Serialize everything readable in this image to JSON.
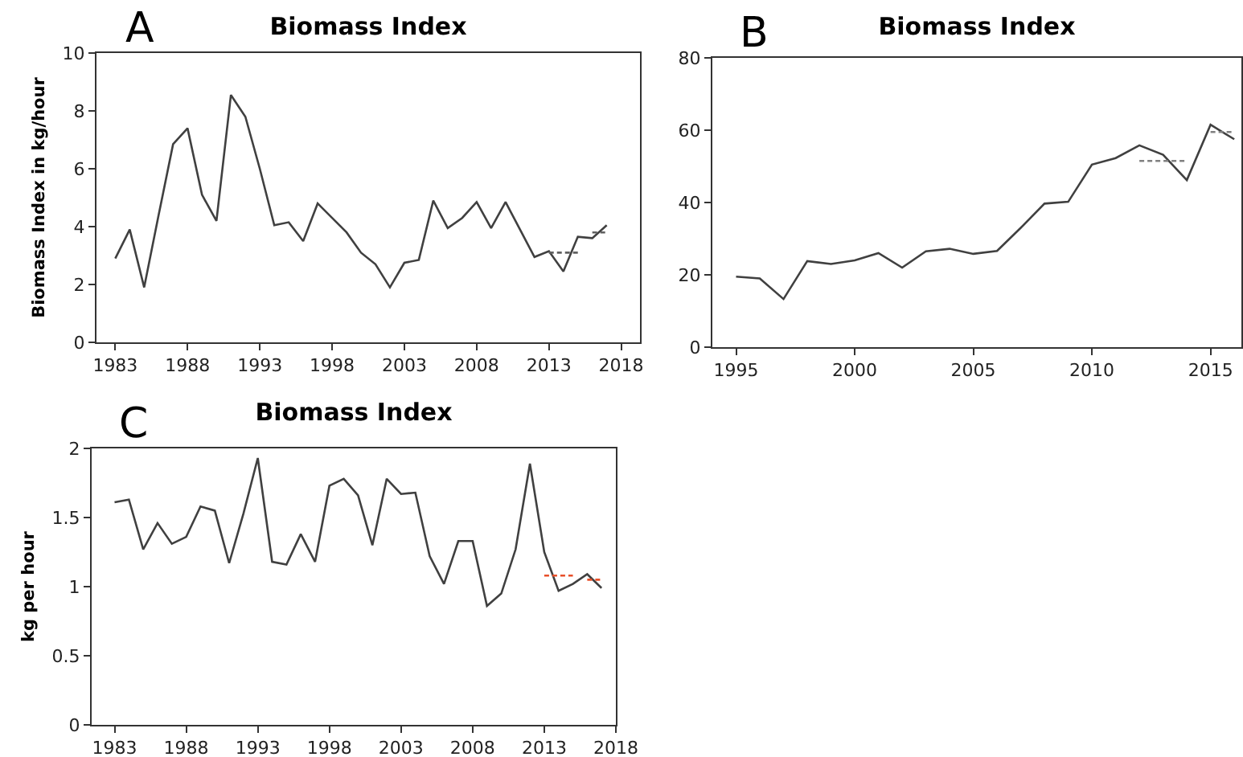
{
  "chart_data": [
    {
      "type": "line",
      "title": "Biomass Index",
      "ylabel": "Biomass Index in kg/hour",
      "annotations": [
        "A"
      ],
      "x": [
        1983,
        1984,
        1985,
        1986,
        1987,
        1988,
        1989,
        1990,
        1991,
        1992,
        1993,
        1994,
        1995,
        1996,
        1997,
        1998,
        1999,
        2000,
        2001,
        2002,
        2003,
        2004,
        2005,
        2006,
        2007,
        2008,
        2009,
        2010,
        2011,
        2012,
        2013,
        2014,
        2015,
        2016,
        2017
      ],
      "xlim": [
        1981.7,
        2019.3
      ],
      "xticks": [
        1983,
        1988,
        1993,
        1998,
        2003,
        2008,
        2013,
        2018
      ],
      "ylim": [
        0,
        10
      ],
      "yticks": [
        0,
        2,
        4,
        6,
        8,
        10
      ],
      "series": [
        {
          "color": "#404040",
          "values": [
            2.9,
            3.9,
            1.9,
            4.4,
            6.85,
            7.4,
            5.1,
            4.2,
            8.55,
            7.8,
            6.0,
            4.05,
            4.15,
            3.5,
            4.8,
            4.3,
            3.8,
            3.1,
            2.7,
            1.9,
            2.75,
            2.85,
            4.9,
            3.95,
            4.3,
            4.85,
            3.95,
            4.85,
            3.9,
            2.95,
            3.15,
            2.45,
            3.65,
            3.6,
            4.05
          ]
        },
        {
          "type": "line",
          "color": "#606060",
          "line_style": "dashed",
          "x": [
            2013,
            2015
          ],
          "values": [
            3.1,
            3.1
          ]
        },
        {
          "type": "line",
          "color": "#606060",
          "line_style": "dashed",
          "x": [
            2016,
            2017
          ],
          "values": [
            3.8,
            3.8
          ]
        }
      ]
    },
    {
      "type": "line",
      "title": "Biomass Index",
      "annotations": [
        "B"
      ],
      "x": [
        1995,
        1996,
        1997,
        1998,
        1999,
        2000,
        2001,
        2002,
        2003,
        2004,
        2005,
        2006,
        2007,
        2008,
        2009,
        2010,
        2011,
        2012,
        2013,
        2014,
        2015,
        2016
      ],
      "xlim": [
        1994,
        2016.3
      ],
      "xticks": [
        1995,
        2000,
        2005,
        2010,
        2015
      ],
      "ylim": [
        0,
        80
      ],
      "yticks": [
        0,
        20,
        40,
        60,
        80
      ],
      "series": [
        {
          "color": "#404040",
          "values": [
            19.5,
            19,
            13.3,
            23.8,
            23,
            24,
            26,
            22,
            26.5,
            27.2,
            25.8,
            26.6,
            33,
            39.7,
            40.2,
            50.5,
            52.3,
            55.8,
            53.2,
            46.2,
            61.5,
            57.5
          ]
        },
        {
          "type": "line",
          "color": "#808080",
          "line_style": "dashed",
          "x": [
            2012,
            2014
          ],
          "values": [
            51.5,
            51.5
          ]
        },
        {
          "type": "line",
          "color": "#808080",
          "line_style": "dashed",
          "x": [
            2015,
            2016
          ],
          "values": [
            59.5,
            59.5
          ]
        }
      ]
    },
    {
      "type": "line",
      "title": "Biomass Index",
      "ylabel": "kg per hour",
      "annotations": [
        "C"
      ],
      "x": [
        1983,
        1984,
        1985,
        1986,
        1987,
        1988,
        1989,
        1990,
        1991,
        1992,
        1993,
        1994,
        1995,
        1996,
        1997,
        1998,
        1999,
        2000,
        2001,
        2002,
        2003,
        2004,
        2005,
        2006,
        2007,
        2008,
        2009,
        2010,
        2011,
        2012,
        2013,
        2014,
        2015,
        2016,
        2017
      ],
      "xlim": [
        1981.4,
        2018
      ],
      "xticks": [
        1983,
        1988,
        1993,
        1998,
        2003,
        2008,
        2013,
        2018
      ],
      "ylim": [
        0,
        2
      ],
      "yticks": [
        0,
        0.5,
        1,
        1.5,
        2
      ],
      "series": [
        {
          "color": "#404040",
          "values": [
            1.61,
            1.63,
            1.27,
            1.46,
            1.31,
            1.36,
            1.58,
            1.55,
            1.17,
            1.53,
            1.93,
            1.18,
            1.16,
            1.38,
            1.18,
            1.73,
            1.78,
            1.66,
            1.3,
            1.78,
            1.67,
            1.68,
            1.22,
            1.02,
            1.33,
            1.33,
            0.86,
            0.95,
            1.27,
            1.89,
            1.25,
            0.97,
            1.02,
            1.09,
            0.99
          ]
        },
        {
          "type": "line",
          "color": "#e8502a",
          "line_style": "dashed",
          "x": [
            2013,
            2015
          ],
          "values": [
            1.08,
            1.08
          ]
        },
        {
          "type": "line",
          "color": "#e8502a",
          "line_style": "dashed",
          "x": [
            2016,
            2017
          ],
          "values": [
            1.05,
            1.05
          ]
        }
      ]
    }
  ]
}
